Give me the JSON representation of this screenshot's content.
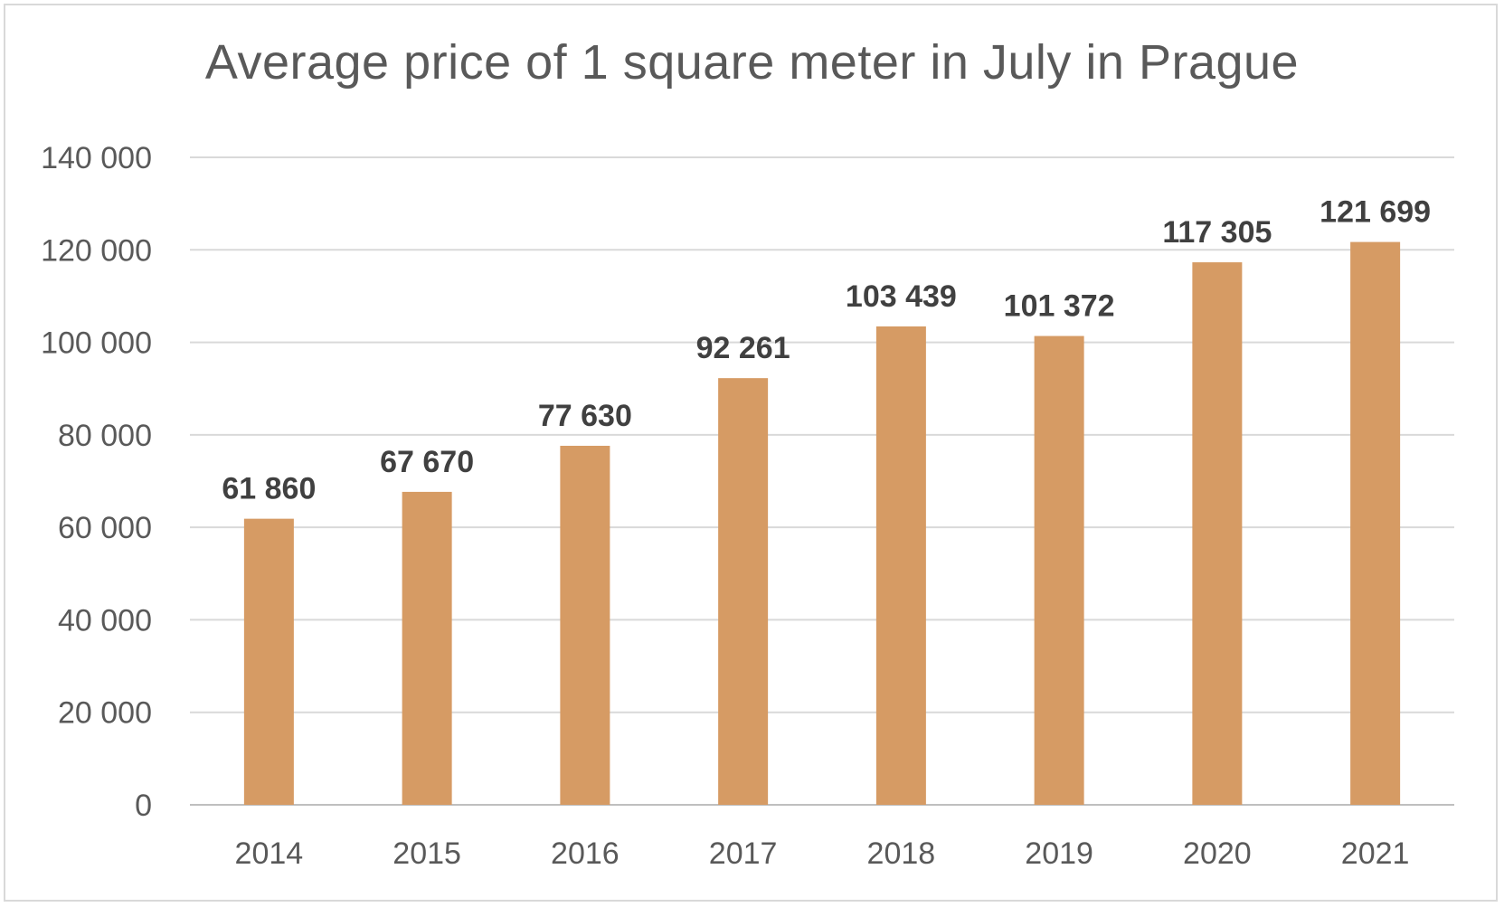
{
  "chart_data": {
    "type": "bar",
    "title": "Average price of 1 square meter in July in Prague",
    "categories": [
      "2014",
      "2015",
      "2016",
      "2017",
      "2018",
      "2019",
      "2020",
      "2021"
    ],
    "values": [
      61860,
      67670,
      77630,
      92261,
      103439,
      101372,
      117305,
      121699
    ],
    "data_labels": [
      "61 860",
      "67 670",
      "77 630",
      "92 261",
      "103 439",
      "101 372",
      "117 305",
      "121 699"
    ],
    "y_ticks": [
      0,
      20000,
      40000,
      60000,
      80000,
      100000,
      120000,
      140000
    ],
    "y_tick_labels": [
      "0",
      "20 000",
      "40 000",
      "60 000",
      "80 000",
      "100 000",
      "120 000",
      "140 000"
    ],
    "ylim": [
      0,
      140000
    ],
    "xlabel": "",
    "ylabel": "",
    "grid": true,
    "legend": "none",
    "colors": {
      "bar": "#d69b64",
      "grid": "#d9d9d9",
      "axis": "#bfbfbf"
    }
  }
}
